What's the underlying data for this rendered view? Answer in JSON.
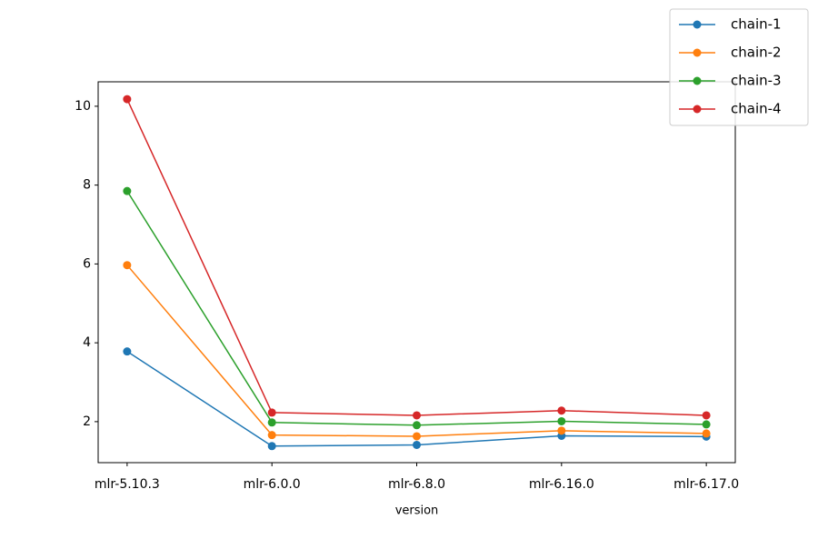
{
  "chart_data": {
    "type": "line",
    "x_label": "version",
    "categories": [
      "mlr-5.10.3",
      "mlr-6.0.0",
      "mlr-6.8.0",
      "mlr-6.16.0",
      "mlr-6.17.0"
    ],
    "series": [
      {
        "name": "chain-1",
        "color": "#1f77b4",
        "values": [
          3.78,
          1.38,
          1.41,
          1.64,
          1.62
        ]
      },
      {
        "name": "chain-2",
        "color": "#ff7f0e",
        "values": [
          5.97,
          1.66,
          1.63,
          1.77,
          1.7
        ]
      },
      {
        "name": "chain-3",
        "color": "#2ca02c",
        "values": [
          7.85,
          1.98,
          1.91,
          2.01,
          1.93
        ]
      },
      {
        "name": "chain-4",
        "color": "#d62728",
        "values": [
          10.18,
          2.23,
          2.16,
          2.28,
          2.16
        ]
      }
    ],
    "ylim": [
      0.96,
      10.62
    ],
    "yticks": [
      2,
      4,
      6,
      8,
      10
    ],
    "grid": false,
    "legend": "upper right"
  }
}
